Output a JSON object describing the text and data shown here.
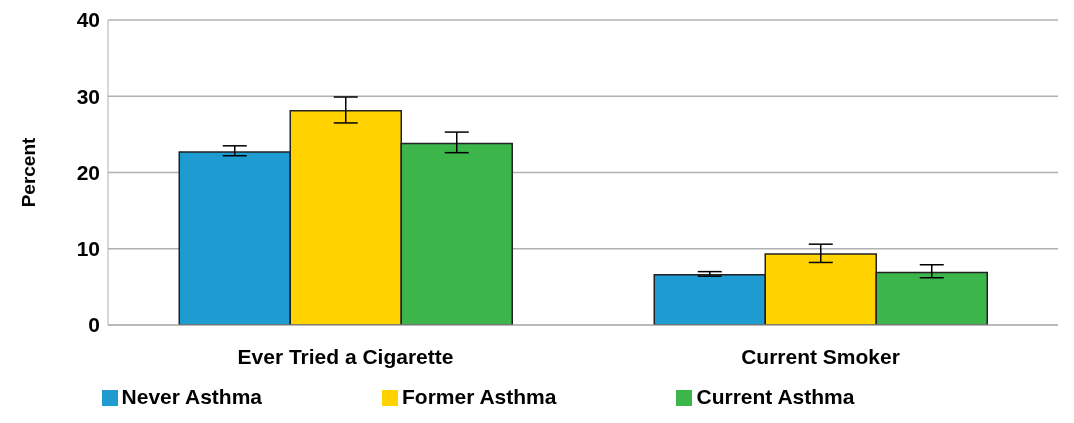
{
  "chart_data": {
    "type": "bar",
    "ylabel": "Percent",
    "categories": [
      "Ever Tried a Cigarette",
      "Current Smoker"
    ],
    "series": [
      {
        "name": "Never Asthma",
        "color": "#1e9bd0",
        "values": [
          22.7,
          6.6
        ],
        "errors": [
          [
            22.2,
            23.5
          ],
          [
            6.4,
            7.0
          ]
        ]
      },
      {
        "name": "Former Asthma",
        "color": "#ffd200",
        "values": [
          28.1,
          9.3
        ],
        "errors": [
          [
            26.5,
            29.9
          ],
          [
            8.2,
            10.6
          ]
        ]
      },
      {
        "name": "Current Asthma",
        "color": "#3cb54a",
        "values": [
          23.8,
          6.9
        ],
        "errors": [
          [
            22.6,
            25.3
          ],
          [
            6.2,
            7.9
          ]
        ]
      }
    ],
    "ylim": [
      0,
      40
    ],
    "yticks": [
      0,
      10,
      20,
      30,
      40
    ],
    "grid": "y",
    "legend": "bottom"
  }
}
